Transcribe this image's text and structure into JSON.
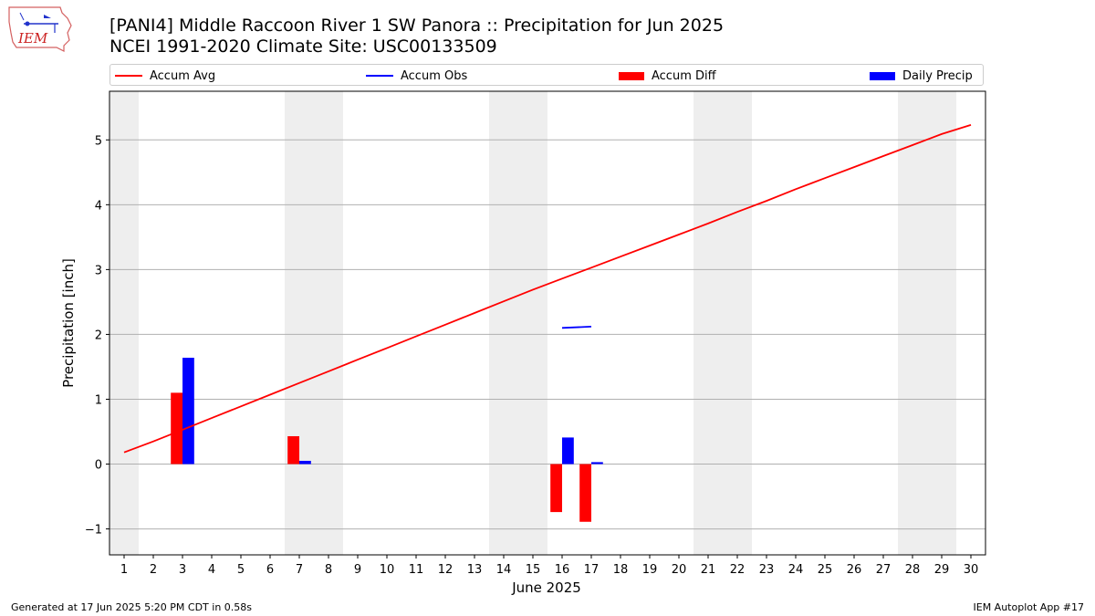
{
  "header": {
    "title_line1": "[PANI4] Middle Raccoon River 1 SW Panora :: Precipitation for Jun 2025",
    "title_line2": "NCEI 1991-2020 Climate Site: USC00133509"
  },
  "logo": {
    "text": "IEM",
    "icon": "iem-logo-icon"
  },
  "legend": [
    {
      "label": "Accum Avg",
      "kind": "line",
      "color": "#ff0000"
    },
    {
      "label": "Accum Obs",
      "kind": "line",
      "color": "#0000ff"
    },
    {
      "label": "Accum Diff",
      "kind": "patch",
      "color": "#ff0000"
    },
    {
      "label": "Daily Precip",
      "kind": "patch",
      "color": "#0000ff"
    }
  ],
  "footer": {
    "left": "Generated at 17 Jun 2025 5:20 PM CDT in 0.58s",
    "right": "IEM Autoplot App #17"
  },
  "chart_data": {
    "type": "bar",
    "xlabel": "June 2025",
    "ylabel": "Precipitation [inch]",
    "xlim": [
      0.5,
      30.5
    ],
    "ylim": [
      -1.4,
      5.75
    ],
    "x_ticks": [
      1,
      2,
      3,
      4,
      5,
      6,
      7,
      8,
      9,
      10,
      11,
      12,
      13,
      14,
      15,
      16,
      17,
      18,
      19,
      20,
      21,
      22,
      23,
      24,
      25,
      26,
      27,
      28,
      29,
      30
    ],
    "y_ticks": [
      -1,
      0,
      1,
      2,
      3,
      4,
      5
    ],
    "y_tick_labels": [
      "−1",
      "0",
      "1",
      "2",
      "3",
      "4",
      "5"
    ],
    "grid": "horizontal",
    "weekend_shading": [
      [
        0.5,
        1.5
      ],
      [
        6.5,
        8.5
      ],
      [
        13.5,
        15.5
      ],
      [
        20.5,
        22.5
      ],
      [
        27.5,
        29.5
      ]
    ],
    "shading_color": "#eeeeee",
    "series": [
      {
        "name": "Accum Avg",
        "kind": "line",
        "color": "#ff0000",
        "x": [
          1,
          2,
          3,
          4,
          5,
          6,
          7,
          8,
          9,
          10,
          11,
          12,
          13,
          14,
          15,
          16,
          17,
          18,
          19,
          20,
          21,
          22,
          23,
          24,
          25,
          26,
          27,
          28,
          29,
          30
        ],
        "values": [
          0.18,
          0.35,
          0.53,
          0.71,
          0.89,
          1.07,
          1.25,
          1.43,
          1.61,
          1.79,
          1.97,
          2.15,
          2.33,
          2.51,
          2.69,
          2.86,
          3.03,
          3.2,
          3.37,
          3.54,
          3.71,
          3.89,
          4.06,
          4.24,
          4.41,
          4.58,
          4.75,
          4.92,
          5.09,
          5.23
        ]
      },
      {
        "name": "Accum Obs",
        "kind": "line",
        "color": "#0000ff",
        "x": [
          16,
          17
        ],
        "values": [
          2.1,
          2.12
        ]
      },
      {
        "name": "Accum Diff",
        "kind": "bar",
        "color": "#ff0000",
        "x": [
          3,
          7,
          16,
          17
        ],
        "values": [
          1.1,
          0.43,
          -0.74,
          -0.89
        ]
      },
      {
        "name": "Daily Precip",
        "kind": "bar",
        "color": "#0000ff",
        "x": [
          3,
          7,
          16,
          17
        ],
        "values": [
          1.64,
          0.05,
          0.41,
          0.03
        ]
      }
    ]
  }
}
